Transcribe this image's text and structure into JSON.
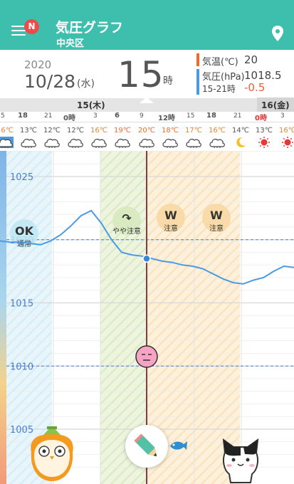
{
  "header": {
    "title": "気圧グラフ",
    "subtitle": "中央区",
    "badge": "N",
    "menu_icon": "menu-icon",
    "location_icon": "location-pin-icon",
    "color": "#3ebfae"
  },
  "info": {
    "year": "2020",
    "date": "10/28",
    "weekday": "(水)",
    "hour": "15",
    "hour_unit": "時",
    "temp_label": "気温(℃)",
    "temp_value": "20",
    "pressure_label": "気圧(hPa)",
    "pressure_value": "1018.5",
    "range_label": "15-21時",
    "change_value": "-0.5"
  },
  "timeline": {
    "dates": [
      "15(木)",
      "16(金)"
    ],
    "hours": [
      "5",
      "18",
      "21",
      "0時",
      "3",
      "6",
      "9",
      "12時",
      "15",
      "18",
      "21",
      "0時",
      "3"
    ]
  },
  "weather": {
    "temps": [
      "16℃",
      "13℃",
      "12℃",
      "12℃",
      "16℃",
      "19℃",
      "20℃",
      "18℃",
      "17℃",
      "16℃",
      "14℃",
      "13℃",
      "16℃"
    ],
    "icons": [
      "cloud-sun-icon",
      "cloud-icon",
      "cloud-icon",
      "cloud-icon",
      "cloud-icon",
      "cloud-icon",
      "cloud-icon",
      "cloud-icon",
      "cloud-icon",
      "cloud-icon",
      "moon-icon",
      "sun-icon",
      "sun-icon"
    ]
  },
  "chart_data": {
    "type": "line",
    "ylabel": "",
    "y_ticks": [
      1025,
      1020,
      1015,
      1010,
      1005
    ],
    "series": [
      {
        "values": [
          1019.9,
          1019.8,
          1019.8,
          1019.7,
          1019.6,
          1019.9,
          1020.4,
          1021.1,
          1021.9,
          1022.3,
          1021.3,
          1020.0,
          1019.0,
          1018.8,
          1018.7,
          1018.5,
          1018.3,
          1018.2,
          1018.0,
          1017.9,
          1017.7,
          1017.3,
          1016.9,
          1016.6,
          1016.5,
          1016.8,
          1017.0,
          1017.5,
          1017.9,
          1017.8
        ]
      }
    ],
    "reference_lines": [
      1020,
      1010
    ],
    "current_value": 1018.5
  },
  "alerts": [
    {
      "label": "通常",
      "icon": "ok-icon"
    },
    {
      "label": "やや注意",
      "icon": "pressure-down-icon"
    },
    {
      "label": "注意",
      "icon": "pressure-warning-icon"
    },
    {
      "label": "注意",
      "icon": "pressure-warning-icon"
    }
  ],
  "colors": {
    "temp": "#ef6a2b",
    "pressure": "#4a9be4",
    "change": "#ef5a3a",
    "cursor": "#8a3b3b"
  }
}
